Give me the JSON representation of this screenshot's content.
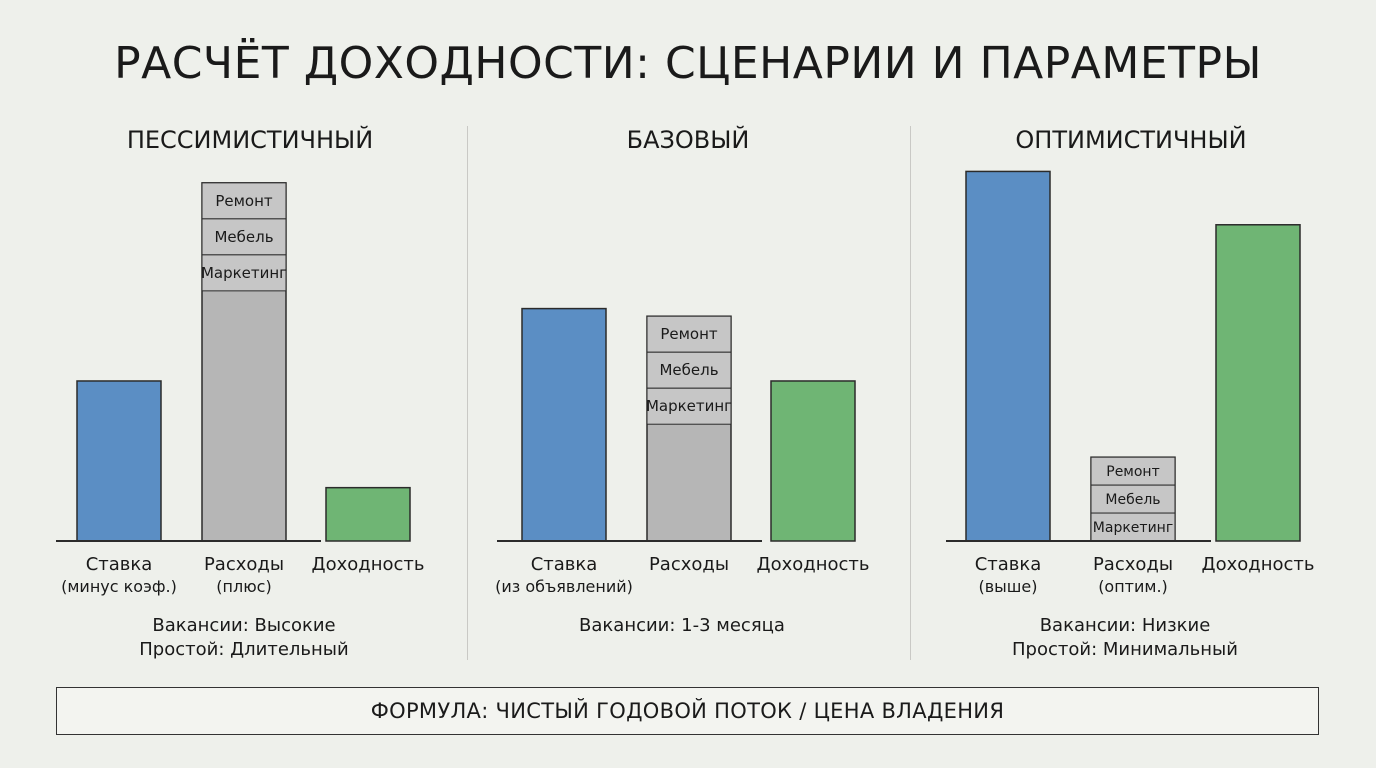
{
  "title": "РАСЧЁТ ДОХОДНОСТИ: СЦЕНАРИИ И ПАРАМЕТРЫ",
  "footer": "ФОРМУЛА: ЧИСТЫЙ ГОДОВОЙ ПОТОК / ЦЕНА ВЛАДЕНИЯ",
  "colors": {
    "rate": "#5b8ec4",
    "expenses": "#b6b6b6",
    "yield": "#6fb574",
    "stroke": "#2b2b2b"
  },
  "chart_data": [
    {
      "type": "bar",
      "title": "ПЕССИМИСТИЧНЫЙ",
      "categories": [
        {
          "label": "Ставка",
          "sublabel": "(минус коэф.)"
        },
        {
          "label": "Расходы",
          "sublabel": "(плюс)"
        },
        {
          "label": "Доходность",
          "sublabel": ""
        }
      ],
      "values": [
        42,
        94,
        14
      ],
      "ylim": [
        0,
        100
      ],
      "expense_components": [
        "Ремонт",
        "Мебель",
        "Маркетинг"
      ],
      "notes": [
        "Вакансии: Высокие",
        "Простой: Длительный"
      ]
    },
    {
      "type": "bar",
      "title": "БАЗОВЫЙ",
      "categories": [
        {
          "label": "Ставка",
          "sublabel": "(из объявлений)"
        },
        {
          "label": "Расходы",
          "sublabel": ""
        },
        {
          "label": "Доходность",
          "sublabel": ""
        }
      ],
      "values": [
        61,
        59,
        42
      ],
      "ylim": [
        0,
        100
      ],
      "expense_components": [
        "Ремонт",
        "Мебель",
        "Маркетинг"
      ],
      "notes": [
        "Вакансии: 1-3 месяца"
      ]
    },
    {
      "type": "bar",
      "title": "ОПТИМИСТИЧНЫЙ",
      "categories": [
        {
          "label": "Ставка",
          "sublabel": "(выше)"
        },
        {
          "label": "Расходы",
          "sublabel": "(оптим.)"
        },
        {
          "label": "Доходность",
          "sublabel": ""
        }
      ],
      "values": [
        97,
        22,
        83
      ],
      "ylim": [
        0,
        100
      ],
      "expense_components": [
        "Ремонт",
        "Мебель",
        "Маркетинг"
      ],
      "notes": [
        "Вакансии: Низкие",
        "Простой: Минимальный"
      ]
    }
  ]
}
